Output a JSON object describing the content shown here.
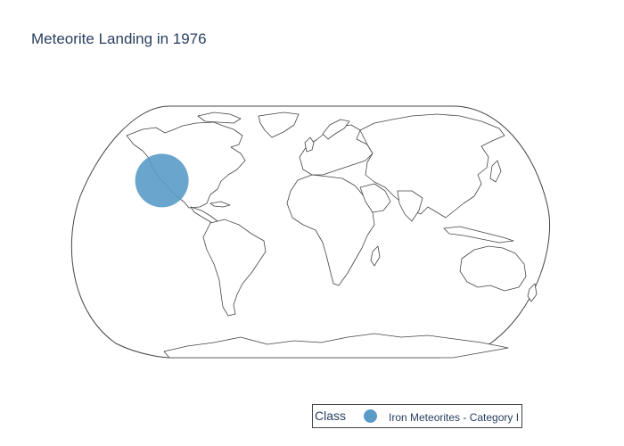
{
  "title": "Meteorite Landing in 1976",
  "legend": {
    "title": "Class",
    "items": [
      {
        "label": "Iron Meteorites - Category I",
        "color": "#5a9bc8"
      }
    ]
  },
  "map": {
    "projection": "natural-earth",
    "land_fill": "#ffffff",
    "coastline_color": "#444444",
    "frame_color": "#444444"
  },
  "markers": [
    {
      "class": "Iron Meteorites - Category I",
      "year": 1976,
      "lon": -119,
      "lat": 35,
      "color": "#5a9bc8",
      "opacity": 0.9
    }
  ]
}
